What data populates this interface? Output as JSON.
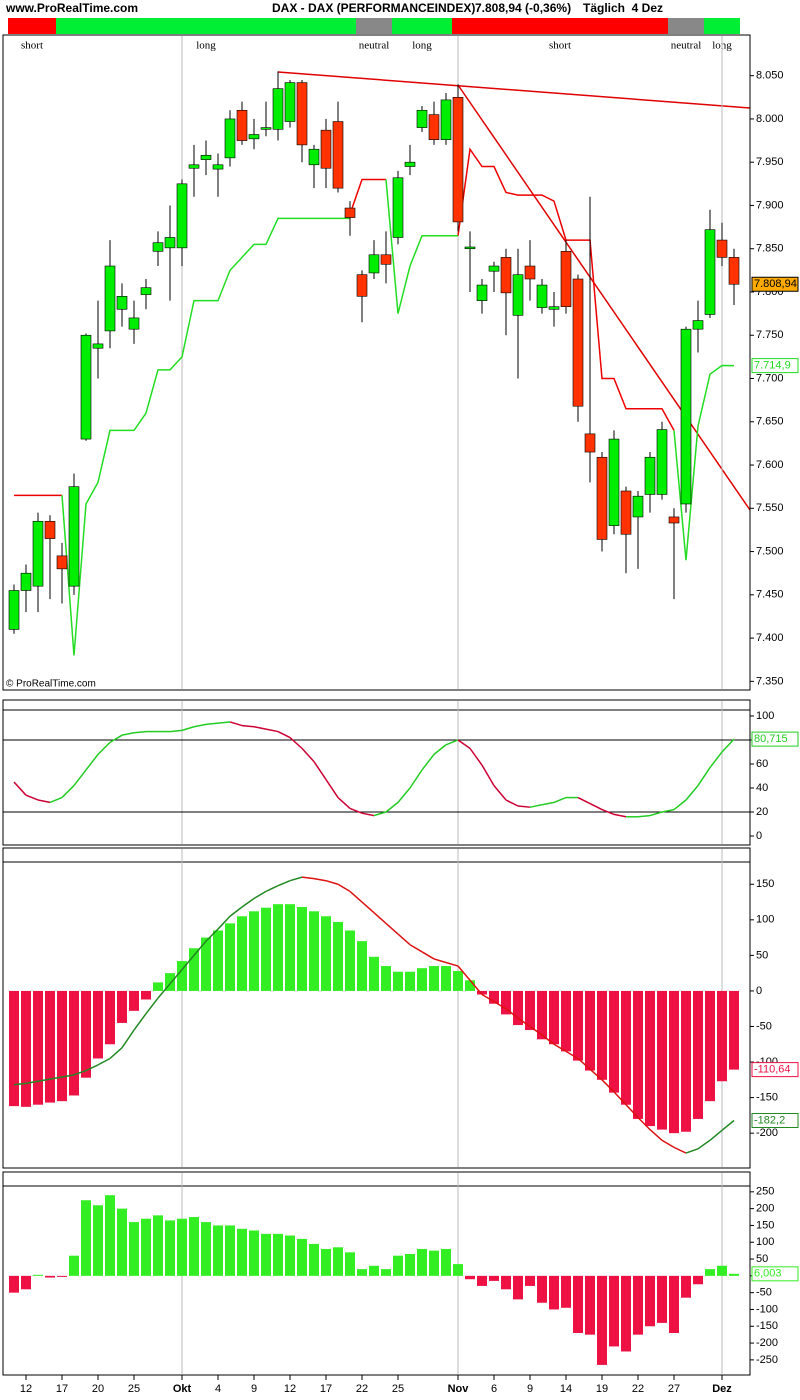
{
  "header": {
    "site": "www.ProRealTime.com",
    "title": "DAX - DAX (PERFORMANCEINDEX)",
    "quote": "7.808,94 (-0,36%)",
    "period": "Täglich  4 Dez"
  },
  "regimes": [
    {
      "label": "short",
      "first": 0,
      "last": 3,
      "color": "#ff0000"
    },
    {
      "label": "long",
      "first": 4,
      "last": 28,
      "color": "#00ee33"
    },
    {
      "label": "neutral",
      "first": 29,
      "last": 31,
      "color": "#888888"
    },
    {
      "label": "long",
      "first": 32,
      "last": 36,
      "color": "#00ee33"
    },
    {
      "label": "short",
      "first": 37,
      "last": 54,
      "color": "#ff0000"
    },
    {
      "label": "neutral",
      "first": 55,
      "last": 57,
      "color": "#888888"
    },
    {
      "label": "long",
      "first": 58,
      "last": 60,
      "color": "#00ee33"
    }
  ],
  "chart_data": [
    {
      "type": "candlestick",
      "watermark": "© ProRealTime.com",
      "ylim": [
        7340,
        8097
      ],
      "yticks": [
        {
          "value": 7350,
          "label": "7.350"
        },
        {
          "value": 7400,
          "label": "7.400"
        },
        {
          "value": 7450,
          "label": "7.450"
        },
        {
          "value": 7500,
          "label": "7.500"
        },
        {
          "value": 7550,
          "label": "7.550"
        },
        {
          "value": 7600,
          "label": "7.600"
        },
        {
          "value": 7650,
          "label": "7.650"
        },
        {
          "value": 7700,
          "label": "7.700"
        },
        {
          "value": 7750,
          "label": "7.750"
        },
        {
          "value": 7800,
          "label": "7.800"
        },
        {
          "value": 7850,
          "label": "7.850"
        },
        {
          "value": 7900,
          "label": "7.900"
        },
        {
          "value": 7950,
          "label": "7.950"
        },
        {
          "value": 8000,
          "label": "8.000"
        },
        {
          "value": 8050,
          "label": "8.050"
        }
      ],
      "up_color": "#00ee00",
      "down_color": "#ff3300",
      "open": [
        7410,
        7455,
        7460,
        7535,
        7495,
        7460,
        7630,
        7735,
        7755,
        7780,
        7757,
        7797,
        7847,
        7851,
        7851,
        7943,
        7953,
        7942,
        7955,
        8010,
        7977,
        7988,
        7988,
        7997,
        8042,
        7947,
        7987,
        7997,
        7897,
        7820,
        7822,
        7843,
        7863,
        7945,
        7990,
        8005,
        7976,
        8025,
        7850,
        7790,
        7824,
        7840,
        7773,
        7830,
        7782,
        7780,
        7847,
        7815,
        7636,
        7609,
        7530,
        7570,
        7540,
        7566,
        7566,
        7540,
        7555,
        7757,
        7774,
        7860,
        7840
      ],
      "high": [
        7462,
        7485,
        7545,
        7542,
        7510,
        7590,
        7752,
        7790,
        7860,
        7810,
        7790,
        7815,
        7870,
        7900,
        7930,
        7970,
        7975,
        7960,
        8010,
        8020,
        8000,
        8020,
        8055,
        8045,
        8045,
        7970,
        8000,
        8020,
        7905,
        7825,
        7860,
        7870,
        7940,
        7970,
        8015,
        8020,
        8030,
        8040,
        7870,
        7815,
        7835,
        7850,
        7850,
        7860,
        7815,
        7800,
        7860,
        7820,
        7910,
        7615,
        7640,
        7575,
        7570,
        7615,
        7650,
        7550,
        7760,
        7790,
        7895,
        7880,
        7850
      ],
      "low": [
        7405,
        7430,
        7430,
        7445,
        7440,
        7450,
        7628,
        7700,
        7735,
        7760,
        7740,
        7780,
        7830,
        7790,
        7830,
        7910,
        7935,
        7910,
        7945,
        7970,
        7965,
        7980,
        7975,
        7990,
        7950,
        7920,
        7920,
        7915,
        7865,
        7765,
        7815,
        7810,
        7855,
        7935,
        7985,
        7970,
        7970,
        7870,
        7800,
        7775,
        7800,
        7750,
        7700,
        7790,
        7775,
        7760,
        7775,
        7650,
        7580,
        7500,
        7520,
        7475,
        7480,
        7545,
        7560,
        7445,
        7545,
        7730,
        7770,
        7830,
        7785
      ],
      "close": [
        7455,
        7475,
        7535,
        7515,
        7480,
        7575,
        7750,
        7740,
        7830,
        7795,
        7770,
        7805,
        7857,
        7863,
        7925,
        7947,
        7958,
        7947,
        8000,
        7975,
        7982,
        7990,
        8035,
        8042,
        7970,
        7965,
        7943,
        7920,
        7886,
        7795,
        7843,
        7832,
        7932,
        7950,
        8010,
        7976,
        8022,
        7881,
        7852,
        7808,
        7830,
        7799,
        7820,
        7815,
        7808,
        7783,
        7783,
        7668,
        7615,
        7514,
        7630,
        7520,
        7564,
        7609,
        7641,
        7533,
        7757,
        7767,
        7872,
        7840,
        7808.94
      ],
      "close_label": "7.808,94",
      "close_label_color": "#ffaa00",
      "lines": [
        {
          "color": "#ee0000",
          "values": [
            7565,
            7565,
            7565,
            7565,
            7565,
            null,
            null,
            null,
            null,
            null,
            null,
            null,
            null,
            null,
            null,
            null,
            null,
            null,
            null,
            null,
            null,
            null,
            null,
            null,
            null,
            null,
            null,
            null,
            7890,
            7930,
            7930,
            7930,
            null,
            null,
            null,
            null,
            null,
            7865,
            7965,
            7945,
            7945,
            7915,
            7912,
            7912,
            7912,
            7905,
            7860,
            7860,
            7860,
            7700,
            7700,
            7665,
            7665,
            7665,
            7665,
            7640,
            null,
            null,
            null,
            null,
            null
          ]
        },
        {
          "color": "#22dd22",
          "values": [
            null,
            null,
            null,
            null,
            7565,
            7380,
            7555,
            7580,
            7640,
            7640,
            7640,
            7660,
            7710,
            7710,
            7725,
            7790,
            7790,
            7790,
            7825,
            7840,
            7855,
            7855,
            7885,
            7885,
            7885,
            7885,
            7885,
            7885,
            7885,
            null,
            null,
            7930,
            7775,
            7830,
            7865,
            7865,
            7865,
            7865,
            null,
            null,
            null,
            null,
            null,
            null,
            null,
            null,
            null,
            null,
            null,
            null,
            null,
            null,
            null,
            null,
            null,
            7640,
            7490,
            7645,
            7705,
            7715,
            7714.9
          ],
          "last_label": "7.714,9"
        }
      ]
    },
    {
      "type": "line",
      "ylim": [
        -7.5,
        113.3
      ],
      "yticks": [
        0,
        20,
        40,
        60,
        80,
        100
      ],
      "levels": [
        20,
        80
      ],
      "up_color": "#22cc22",
      "down_color": "#cc0033",
      "values": [
        45,
        34,
        30,
        28,
        32,
        42,
        55,
        68,
        78,
        84,
        86,
        87,
        87,
        87,
        88,
        91,
        93,
        94,
        95,
        92,
        91,
        89,
        87,
        82,
        73,
        62,
        47,
        32,
        23,
        19,
        17,
        20,
        28,
        40,
        55,
        68,
        76,
        80,
        73,
        59,
        42,
        30,
        25,
        24,
        26,
        28,
        32,
        32,
        27,
        22,
        18,
        16,
        16,
        17,
        20,
        22,
        30,
        42,
        57,
        70,
        80.715
      ],
      "last_label": "80,715"
    },
    {
      "type": "bar",
      "ylim": [
        -249,
        201
      ],
      "yticks": [
        150,
        100,
        50,
        0,
        -50,
        -100,
        -150,
        -200
      ],
      "pos_color": "#33ee22",
      "neg_color": "#ee1144",
      "values": [
        -162,
        -163,
        -160,
        -157,
        -155,
        -147,
        -122,
        -95,
        -75,
        -45,
        -28,
        -12,
        12,
        25,
        42,
        60,
        75,
        85,
        95,
        105,
        112,
        117,
        122,
        122,
        118,
        112,
        105,
        97,
        85,
        70,
        48,
        35,
        27,
        27,
        32,
        35,
        35,
        28,
        15,
        -5,
        -18,
        -33,
        -48,
        -55,
        -68,
        -75,
        -85,
        -98,
        -112,
        -125,
        -143,
        -160,
        -180,
        -190,
        -195,
        -200,
        -198,
        -180,
        -155,
        -127,
        -110.64
      ],
      "last_label": "-110,64",
      "signal": {
        "up_color": "#228822",
        "down_color": "#dd1111",
        "values": [
          -132,
          -130,
          -127,
          -124,
          -121,
          -118,
          -112,
          -104,
          -95,
          -80,
          -55,
          -32,
          -10,
          10,
          30,
          50,
          70,
          87,
          105,
          118,
          130,
          140,
          148,
          155,
          160,
          158,
          155,
          150,
          140,
          125,
          110,
          95,
          80,
          65,
          55,
          45,
          40,
          35,
          15,
          -5,
          -15,
          -25,
          -38,
          -50,
          -62,
          -75,
          -85,
          -95,
          -110,
          -125,
          -142,
          -160,
          -178,
          -195,
          -210,
          -220,
          -228,
          -222,
          -210,
          -196,
          -182.2
        ],
        "last_label": "-182,2"
      }
    },
    {
      "type": "bar",
      "ylim": [
        -295,
        309
      ],
      "yticks": [
        250,
        200,
        150,
        100,
        50,
        0,
        -50,
        -100,
        -150,
        -200,
        -250
      ],
      "pos_color": "#33ee22",
      "neg_color": "#ee1144",
      "values": [
        -50,
        -40,
        3,
        -5,
        -3,
        60,
        225,
        210,
        240,
        200,
        160,
        170,
        180,
        165,
        170,
        175,
        160,
        150,
        150,
        140,
        135,
        125,
        125,
        120,
        110,
        95,
        80,
        85,
        70,
        20,
        30,
        20,
        60,
        65,
        80,
        75,
        80,
        35,
        -10,
        -30,
        -15,
        -40,
        -70,
        -30,
        -80,
        -100,
        -95,
        -170,
        -175,
        -265,
        -210,
        -225,
        -175,
        -150,
        -140,
        -170,
        -65,
        -25,
        20,
        30,
        6.003
      ],
      "last_label": "6,003",
      "categories": [
        null,
        "12",
        null,
        null,
        "17",
        null,
        null,
        "20",
        null,
        null,
        "25",
        null,
        null,
        null,
        "Okt",
        null,
        null,
        "4",
        null,
        null,
        "9",
        null,
        null,
        "12",
        null,
        null,
        "17",
        null,
        null,
        "22",
        null,
        null,
        "25",
        null,
        null,
        null,
        null,
        "Nov",
        null,
        null,
        "6",
        null,
        null,
        "9",
        null,
        null,
        "14",
        null,
        null,
        "19",
        null,
        null,
        "22",
        null,
        null,
        "27",
        null,
        null,
        null,
        "Dez",
        null
      ]
    }
  ]
}
